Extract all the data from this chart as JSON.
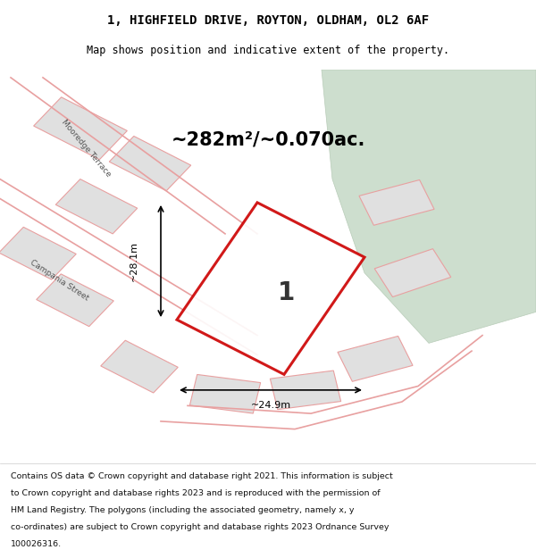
{
  "title_line1": "1, HIGHFIELD DRIVE, ROYTON, OLDHAM, OL2 6AF",
  "title_line2": "Map shows position and indicative extent of the property.",
  "area_text": "~282m²/~0.070ac.",
  "dim1_text": "~28.1m",
  "dim2_text": "~24.9m",
  "plot_number": "1",
  "footer_lines": [
    "Contains OS data © Crown copyright and database right 2021. This information is subject",
    "to Crown copyright and database rights 2023 and is reproduced with the permission of",
    "HM Land Registry. The polygons (including the associated geometry, namely x, y",
    "co-ordinates) are subject to Crown copyright and database rights 2023 Ordnance Survey",
    "100026316."
  ],
  "map_bg": "#f0f0f0",
  "green_area_color": "#cddece",
  "plot_outline_color": "#cc0000",
  "neighbor_fill": "#e0e0e0",
  "neighbor_outline": "#e8a0a0",
  "street_line_color": "#e8a0a0",
  "street_label_color": "#555555"
}
